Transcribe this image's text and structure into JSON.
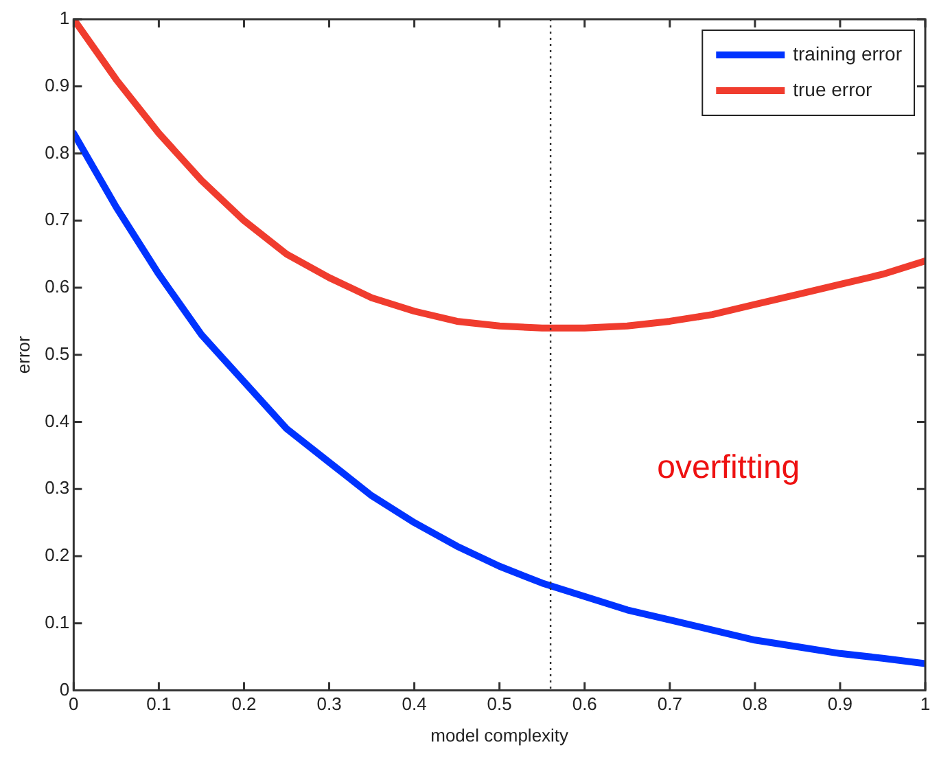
{
  "chart_data": {
    "type": "line",
    "xlabel": "model complexity",
    "ylabel": "error",
    "x": [
      0,
      0.05,
      0.1,
      0.15,
      0.2,
      0.25,
      0.3,
      0.35,
      0.4,
      0.45,
      0.5,
      0.55,
      0.6,
      0.65,
      0.7,
      0.75,
      0.8,
      0.85,
      0.9,
      0.95,
      1
    ],
    "series": [
      {
        "name": "training error",
        "color": "#0033ff",
        "values": [
          0.83,
          0.72,
          0.62,
          0.53,
          0.46,
          0.39,
          0.34,
          0.29,
          0.25,
          0.215,
          0.185,
          0.16,
          0.14,
          0.12,
          0.105,
          0.09,
          0.075,
          0.065,
          0.055,
          0.048,
          0.04
        ]
      },
      {
        "name": "true error",
        "color": "#f03c2e",
        "values": [
          1.0,
          0.91,
          0.83,
          0.76,
          0.7,
          0.65,
          0.615,
          0.585,
          0.565,
          0.55,
          0.543,
          0.54,
          0.54,
          0.543,
          0.55,
          0.56,
          0.575,
          0.59,
          0.605,
          0.62,
          0.64
        ]
      }
    ],
    "xlim": [
      0,
      1
    ],
    "xticks": [
      0,
      0.1,
      0.2,
      0.3,
      0.4,
      0.5,
      0.6,
      0.7,
      0.8,
      0.9,
      1
    ],
    "ylim": [
      0,
      1
    ],
    "yticks": [
      0,
      0.1,
      0.2,
      0.3,
      0.4,
      0.5,
      0.6,
      0.7,
      0.8,
      0.9,
      1
    ],
    "ref_lines": [
      {
        "axis": "x",
        "value": 0.56,
        "color": "#333333",
        "line_style": "dotted"
      }
    ],
    "annotations": [
      "overfitting"
    ],
    "grid": false,
    "legend": "top right",
    "marker": "none",
    "line_style": "solid"
  }
}
